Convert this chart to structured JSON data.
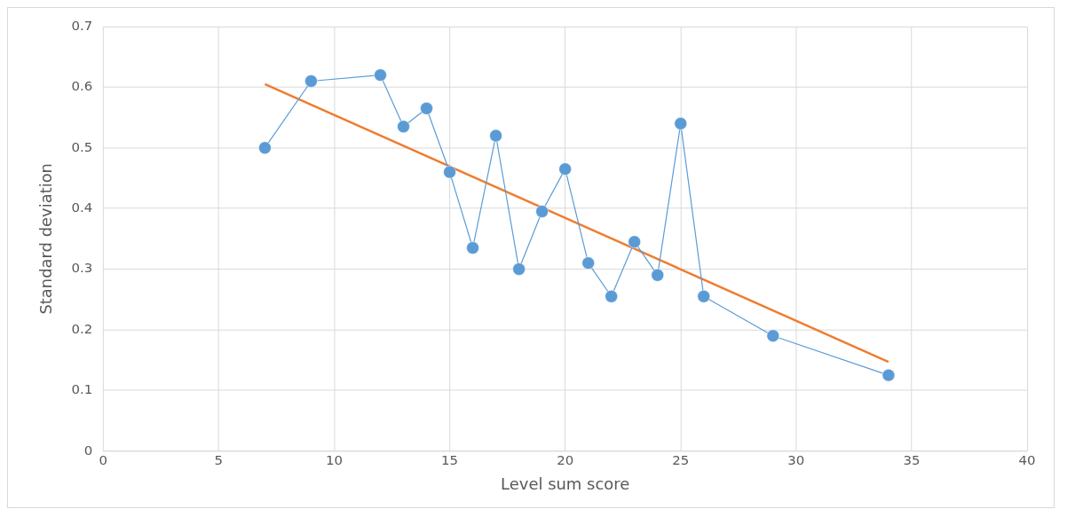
{
  "chart_data": {
    "type": "line",
    "xlabel": "Level sum score",
    "ylabel": "Standard deviation",
    "xlim": [
      0,
      40
    ],
    "xticks": [
      0,
      5,
      10,
      15,
      20,
      25,
      30,
      35,
      40
    ],
    "ylim": [
      0,
      0.7
    ],
    "yticks": [
      0,
      0.1,
      0.2,
      0.3,
      0.4,
      0.5,
      0.6,
      0.7
    ],
    "grid": true,
    "legend": false,
    "marker": "circle",
    "line_style": "solid",
    "series": [
      {
        "color": "#5b9bd5",
        "x": [
          7,
          9,
          12,
          13,
          14,
          15,
          16,
          17,
          18,
          19,
          20,
          21,
          22,
          23,
          24,
          25,
          26,
          29,
          34
        ],
        "values": [
          0.5,
          0.61,
          0.62,
          0.535,
          0.565,
          0.46,
          0.335,
          0.52,
          0.3,
          0.395,
          0.465,
          0.31,
          0.255,
          0.345,
          0.29,
          0.54,
          0.255,
          0.19,
          0.125
        ]
      },
      {
        "color": "#ed7d31",
        "marker": "none",
        "x": [
          7,
          34
        ],
        "values": [
          0.605,
          0.147
        ]
      }
    ]
  }
}
